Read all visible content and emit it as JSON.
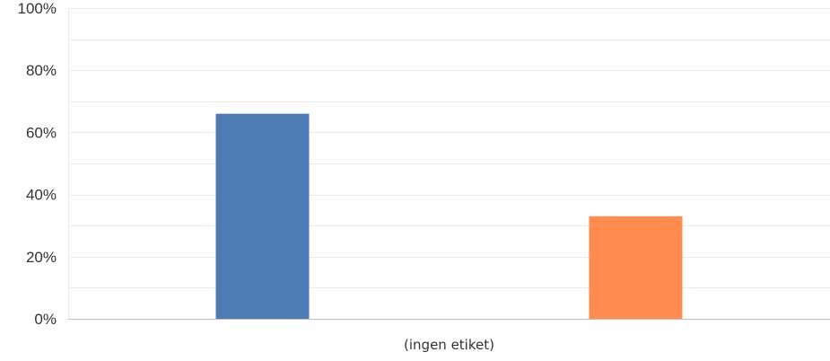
{
  "chart_data": {
    "type": "bar",
    "title": "",
    "xlabel": "",
    "ylabel": "",
    "categories": [
      "(ingen etiket)"
    ],
    "series": [
      {
        "values": [
          66
        ],
        "color": "#4e7bb4"
      },
      {
        "values": [
          33
        ],
        "color": "#ff8c4e"
      }
    ],
    "ylim": [
      0,
      100
    ],
    "yticks": [
      0,
      20,
      40,
      60,
      80,
      100
    ],
    "ytick_labels": [
      "0%",
      "20%",
      "40%",
      "60%",
      "80%",
      "100%"
    ],
    "grid": true,
    "legend": "none",
    "colors": {
      "grid": "#ebebeb",
      "axis": "#bdbdbd"
    }
  }
}
